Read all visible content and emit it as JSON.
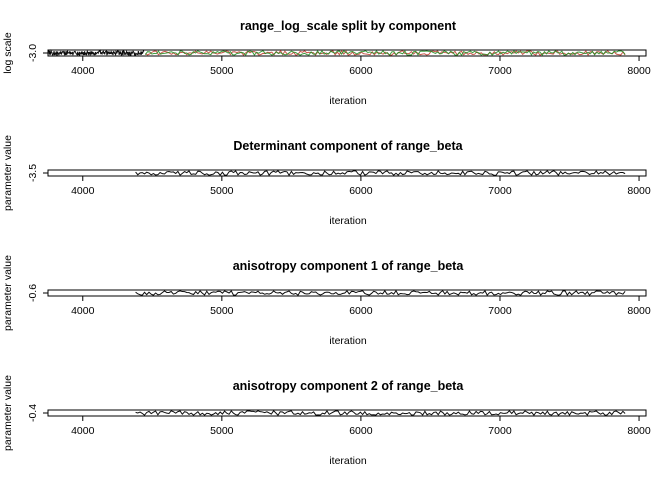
{
  "chart_data": [
    {
      "type": "line",
      "title": "range_log_scale split by component",
      "xlabel": "iteration",
      "ylabel": "log scale",
      "xlim": [
        3750,
        8050
      ],
      "x_ticks": [
        4000,
        5000,
        6000,
        7000,
        8000
      ],
      "y_ticks": [
        -3.0
      ],
      "y_tick_labels": [
        "-3.0"
      ],
      "ylim": [
        -3.04,
        -2.96
      ],
      "x_range": [
        4450,
        7900
      ],
      "series": [
        {
          "color": "#000000",
          "x": [
            3750,
            4440
          ],
          "values": [
            -3.0,
            -3.0
          ]
        },
        {
          "color": "#c0392b",
          "x": [
            4450,
            7900
          ],
          "values": [
            -3.0,
            -3.0
          ]
        },
        {
          "color": "#1e8c1e",
          "x": [
            4450,
            7900
          ],
          "values": [
            -3.0,
            -3.0
          ]
        }
      ]
    },
    {
      "type": "line",
      "title": "Determinant component of range_beta",
      "xlabel": "iteration",
      "ylabel": "parameter value",
      "xlim": [
        3750,
        8050
      ],
      "x_ticks": [
        4000,
        5000,
        6000,
        7000,
        8000
      ],
      "y_ticks": [
        -3.5
      ],
      "y_tick_labels": [
        "-3.5"
      ],
      "ylim": [
        -3.54,
        -3.46
      ],
      "x_range": [
        4380,
        7900
      ],
      "series": [
        {
          "color": "#000000",
          "x": [
            4380,
            7900
          ],
          "values": [
            -3.5,
            -3.5
          ]
        }
      ]
    },
    {
      "type": "line",
      "title": "anisotropy component 1 of range_beta",
      "xlabel": "iteration",
      "ylabel": "parameter value",
      "xlim": [
        3750,
        8050
      ],
      "x_ticks": [
        4000,
        5000,
        6000,
        7000,
        8000
      ],
      "y_ticks": [
        -0.6
      ],
      "y_tick_labels": [
        "-0.6"
      ],
      "ylim": [
        -0.64,
        -0.56
      ],
      "x_range": [
        4380,
        7900
      ],
      "series": [
        {
          "color": "#000000",
          "x": [
            4380,
            7900
          ],
          "values": [
            -0.6,
            -0.6
          ]
        }
      ]
    },
    {
      "type": "line",
      "title": "anisotropy component 2 of range_beta",
      "xlabel": "iteration",
      "ylabel": "parameter value",
      "xlim": [
        3750,
        8050
      ],
      "x_ticks": [
        4000,
        5000,
        6000,
        7000,
        8000
      ],
      "y_ticks": [
        -0.4
      ],
      "y_tick_labels": [
        "-0.4"
      ],
      "ylim": [
        -0.44,
        -0.36
      ],
      "x_range": [
        4380,
        7900
      ],
      "series": [
        {
          "color": "#000000",
          "x": [
            4380,
            7900
          ],
          "values": [
            -0.4,
            -0.4
          ]
        }
      ]
    }
  ]
}
